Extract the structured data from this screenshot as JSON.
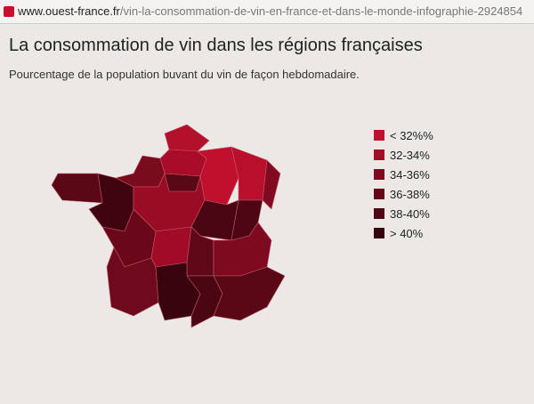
{
  "browser": {
    "url_host": "www.ouest-france.fr",
    "url_path": "/vin-la-consommation-de-vin-en-france-et-dans-le-monde-infographie-2924854"
  },
  "header": {
    "title": "La consommation de vin dans les régions françaises",
    "subtitle": "Pourcentage de la population buvant du vin de façon hebdomadaire."
  },
  "legend": {
    "items": [
      {
        "label": "< 32%%",
        "color": "#c0102e"
      },
      {
        "label": "32-34%",
        "color": "#a20c26"
      },
      {
        "label": "34-36%",
        "color": "#820a20"
      },
      {
        "label": "36-38%",
        "color": "#640818"
      },
      {
        "label": "38-40%",
        "color": "#4e0614"
      },
      {
        "label": "> 40%",
        "color": "#38040e"
      }
    ]
  }
}
